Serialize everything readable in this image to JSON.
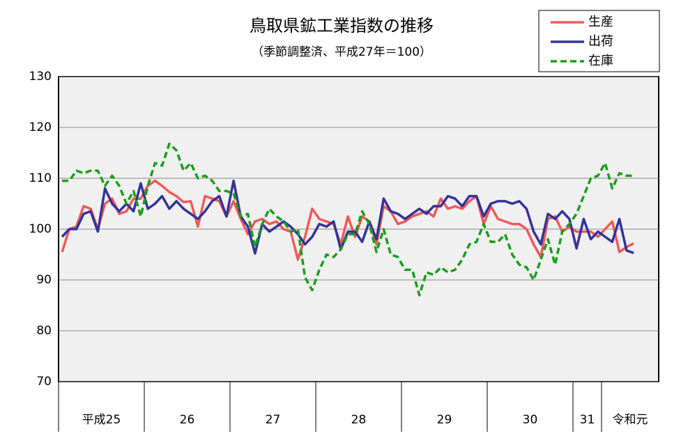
{
  "chart_data": {
    "type": "line",
    "title": "鳥取県鉱工業指数の推移",
    "subtitle": "（季節調整済、平成27年＝100）",
    "categories": [
      "平成25",
      null,
      null,
      null,
      null,
      null,
      null,
      null,
      null,
      null,
      null,
      null,
      "26",
      null,
      null,
      null,
      null,
      null,
      null,
      null,
      null,
      null,
      null,
      null,
      "27",
      null,
      null,
      null,
      null,
      null,
      null,
      null,
      null,
      null,
      null,
      null,
      "28",
      null,
      null,
      null,
      null,
      null,
      null,
      null,
      null,
      null,
      null,
      null,
      "29",
      null,
      null,
      null,
      null,
      null,
      null,
      null,
      null,
      null,
      null,
      null,
      "30",
      null,
      null,
      null,
      null,
      null,
      null,
      null,
      null,
      null,
      null,
      null,
      "31",
      null,
      null,
      null,
      "令和元",
      null,
      null,
      null,
      null,
      null,
      null,
      null
    ],
    "series": [
      {
        "name": "生産",
        "color": "#f05a5a",
        "dashed": false,
        "values": [
          95.5,
          100,
          100.5,
          104.5,
          104,
          100,
          105,
          106,
          103,
          103.5,
          106,
          106,
          108.5,
          109.5,
          108.5,
          107.3,
          106.5,
          105.3,
          105.5,
          100.5,
          106.5,
          106,
          105.5,
          102.5,
          105.5,
          102,
          99,
          101.5,
          102,
          101,
          101.5,
          100,
          99.5,
          94,
          98.5,
          104,
          102,
          101.5,
          101,
          97,
          102.5,
          98.5,
          102.5,
          101.5,
          97,
          104.5,
          103.5,
          101,
          101.5,
          102.5,
          103,
          103.5,
          102.5,
          106,
          104,
          104.5,
          104,
          105.5,
          106.5,
          101,
          104.5,
          102,
          101.5,
          101,
          101,
          100,
          97,
          94.5,
          102,
          102.5,
          99.5,
          100.5,
          99.5,
          99.5,
          99.5,
          98.5,
          100,
          101.5,
          95.5,
          96.5,
          97.2,
          null,
          null,
          null
        ]
      },
      {
        "name": "出荷",
        "color": "#333399",
        "dashed": false,
        "values": [
          98.5,
          100,
          100,
          103,
          103.5,
          99.5,
          108,
          105,
          103.5,
          105,
          103.5,
          109,
          104,
          105,
          106.5,
          104,
          105.5,
          104,
          103,
          102,
          103.5,
          105.5,
          106.5,
          102.5,
          109.5,
          102.5,
          100.5,
          95.2,
          101,
          99.5,
          100.5,
          101.5,
          100.5,
          99,
          97,
          98.5,
          101,
          100.5,
          101.5,
          96,
          99.5,
          99.5,
          97.5,
          101.5,
          98,
          106,
          103.5,
          103,
          102,
          103,
          104,
          103,
          104.5,
          104.5,
          106.5,
          106,
          104.5,
          106.5,
          106.5,
          102.5,
          105,
          105.5,
          105.5,
          105,
          105.5,
          104,
          99.5,
          97,
          103,
          102,
          103.5,
          102,
          96.2,
          102,
          98,
          99.5,
          98.5,
          97.5,
          102,
          95.8,
          95.3,
          null,
          null,
          null
        ]
      },
      {
        "name": "在庫",
        "color": "#1a9e1a",
        "dashed": true,
        "values": [
          109.5,
          109.5,
          111.5,
          111,
          111.5,
          111.5,
          108.5,
          110.5,
          108.5,
          105,
          107.5,
          102.5,
          108.5,
          113,
          112.5,
          116.8,
          115.5,
          111.5,
          113,
          110,
          110.5,
          109.5,
          107.5,
          107.5,
          107,
          102.5,
          103,
          96.5,
          101,
          104,
          102.5,
          101.5,
          99.5,
          100,
          90.5,
          88,
          92,
          95,
          94.5,
          96,
          99,
          99,
          103.5,
          101,
          95.5,
          100,
          95,
          94.5,
          92,
          92,
          87,
          91.5,
          91,
          92.5,
          91.5,
          92,
          94,
          97,
          97.5,
          101,
          97.5,
          97.5,
          99,
          95,
          93,
          92.5,
          90,
          94,
          98,
          93,
          99.5,
          101,
          103,
          106.5,
          110,
          110.5,
          113,
          108,
          111,
          110.5,
          110.5,
          null,
          null,
          null
        ]
      }
    ],
    "ylim": [
      70,
      130
    ],
    "yticks": [
      70,
      80,
      90,
      100,
      110,
      120,
      130
    ],
    "grid": true
  }
}
